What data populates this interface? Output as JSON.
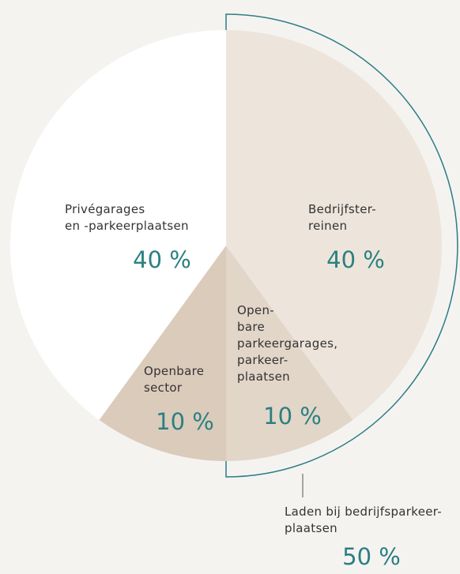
{
  "chart_data": {
    "type": "pie",
    "categories": [
      "Bedrijfster-\nreinen",
      "Open-\nbare\nparkeergarages,\nparkeer-\nplaatsen",
      "Openbare\nsector",
      "Privégarages\nen -parkeerplaatsen"
    ],
    "values": [
      40,
      10,
      10,
      40
    ],
    "value_labels": [
      "40 %",
      "10 %",
      "10 %",
      "40 %"
    ],
    "colors": [
      "#ede5db",
      "#e2d6c9",
      "#dbcbbb",
      "#ffffff"
    ],
    "annotation": {
      "text": "Laden bij bedrijfsparkeer-\nplaatsen",
      "value": 50,
      "value_label": "50 %",
      "color": "#2b7d86"
    }
  }
}
